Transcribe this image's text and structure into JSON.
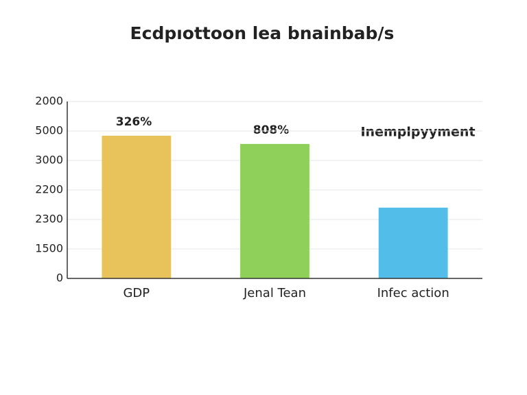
{
  "chart_data": {
    "type": "bar",
    "title": "Ecdpıottoon lea bnainbab/s",
    "categories": [
      "GDP",
      "Jenal Tean",
      "Infec action"
    ],
    "values": [
      4.84,
      4.56,
      2.4
    ],
    "colors": [
      "#e8c35c",
      "#8fd05b",
      "#52bde8"
    ],
    "ylim": [
      0,
      6
    ],
    "yticks": [
      0,
      {
        "value": 1,
        "label": "1500"
      },
      {
        "value": 2,
        "label": "2300"
      },
      {
        "value": 3,
        "label": "2200"
      },
      {
        "value": 4,
        "label": "3000"
      },
      {
        "value": 5,
        "label": "5000"
      },
      {
        "value": 6,
        "label": "2000"
      }
    ],
    "grid": true,
    "annotations": [
      "326%",
      "808%",
      "Inemplpyyment"
    ]
  }
}
